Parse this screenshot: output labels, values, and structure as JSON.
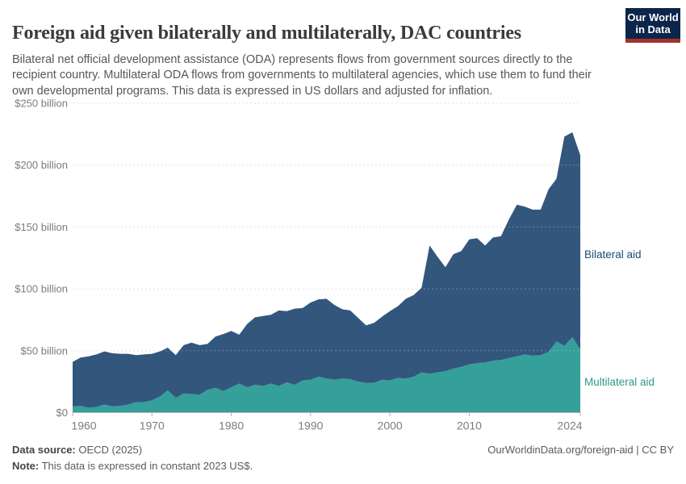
{
  "header": {
    "title": "Foreign aid given bilaterally and multilaterally, DAC countries",
    "subtitle": "Bilateral net official development assistance (ODA) represents flows from government sources directly to the recipient country. Multilateral ODA flows from governments to multilateral agencies, which use them to fund their own developmental programs. This data is expressed in US dollars and adjusted for inflation.",
    "logo": {
      "line1": "Our World",
      "line2": "in Data",
      "bg_color": "#0b254b",
      "stripe_color": "#a2332b"
    }
  },
  "chart_data": {
    "type": "area",
    "stacked": true,
    "title": "Foreign aid given bilaterally and multilaterally, DAC countries",
    "xlabel": "",
    "ylabel": "",
    "xlim": [
      1960,
      2024
    ],
    "ylim": [
      0,
      250
    ],
    "grid": "horizontal-dashed",
    "legend_position": "right-of-plot",
    "unit": "US$ billion, constant 2023 prices",
    "x": [
      1960,
      1961,
      1962,
      1963,
      1964,
      1965,
      1966,
      1967,
      1968,
      1969,
      1970,
      1971,
      1972,
      1973,
      1974,
      1975,
      1976,
      1977,
      1978,
      1979,
      1980,
      1981,
      1982,
      1983,
      1984,
      1985,
      1986,
      1987,
      1988,
      1989,
      1990,
      1991,
      1992,
      1993,
      1994,
      1995,
      1996,
      1997,
      1998,
      1999,
      2000,
      2001,
      2002,
      2003,
      2004,
      2005,
      2006,
      2007,
      2008,
      2009,
      2010,
      2011,
      2012,
      2013,
      2014,
      2015,
      2016,
      2017,
      2018,
      2019,
      2020,
      2021,
      2022,
      2023,
      2024
    ],
    "series": [
      {
        "name": "Multilateral aid",
        "color": "#34a099",
        "label_color": "#2e968c",
        "values": [
          5,
          5.5,
          4,
          4.5,
          6.5,
          5,
          5.5,
          6.5,
          8.5,
          8.5,
          10,
          13,
          18,
          12,
          15.5,
          15,
          14.5,
          18.5,
          20,
          17.5,
          20.5,
          23.5,
          20.5,
          22.5,
          21.5,
          23.5,
          21.5,
          24.5,
          22.5,
          26,
          26.5,
          29,
          27.5,
          26.5,
          27.5,
          27,
          25,
          24,
          24,
          26.5,
          26,
          28,
          27.5,
          29,
          32.5,
          31.5,
          32.5,
          33.5,
          35.5,
          37,
          39,
          40,
          40.5,
          42,
          42.5,
          44,
          45.5,
          47,
          46,
          46.5,
          49,
          57.5,
          54,
          61,
          51
        ]
      },
      {
        "name": "Bilateral aid",
        "color": "#33567d",
        "label_color": "#1d4877",
        "values": [
          36,
          39,
          41.5,
          42.5,
          43,
          43,
          42,
          41,
          38,
          38.5,
          37.5,
          36.5,
          34.5,
          34.5,
          39,
          41.5,
          40,
          37,
          41.5,
          46,
          45.5,
          39.5,
          51,
          54.5,
          56.5,
          55.5,
          61,
          57.5,
          61.5,
          58.5,
          62.5,
          62.5,
          64.5,
          60.5,
          56,
          55.5,
          51.5,
          46.5,
          48.5,
          51,
          56,
          58,
          64.5,
          66,
          68.5,
          103.5,
          93.5,
          84,
          92.5,
          93.5,
          101,
          101,
          94.5,
          99.5,
          100,
          112,
          122.5,
          119.5,
          118,
          117.5,
          131.5,
          131.5,
          169,
          165.5,
          157
        ]
      }
    ],
    "x_ticks": {
      "values": [
        1960,
        1970,
        1980,
        1990,
        2000,
        2010,
        2024
      ],
      "labels": [
        "1960",
        "1970",
        "1980",
        "1990",
        "2000",
        "2010",
        "2024"
      ]
    },
    "y_ticks": {
      "values": [
        0,
        50,
        100,
        150,
        200,
        250
      ],
      "labels": [
        "$0",
        "$50 billion",
        "$100 billion",
        "$150 billion",
        "$200 billion",
        "$250 billion"
      ]
    }
  },
  "footer": {
    "source_label": "Data source:",
    "source_value": " OECD (2025)",
    "note_label": "Note:",
    "note_value": " This data is expressed in constant 2023 US$.",
    "link": "OurWorldinData.org/foreign-aid | CC BY"
  }
}
